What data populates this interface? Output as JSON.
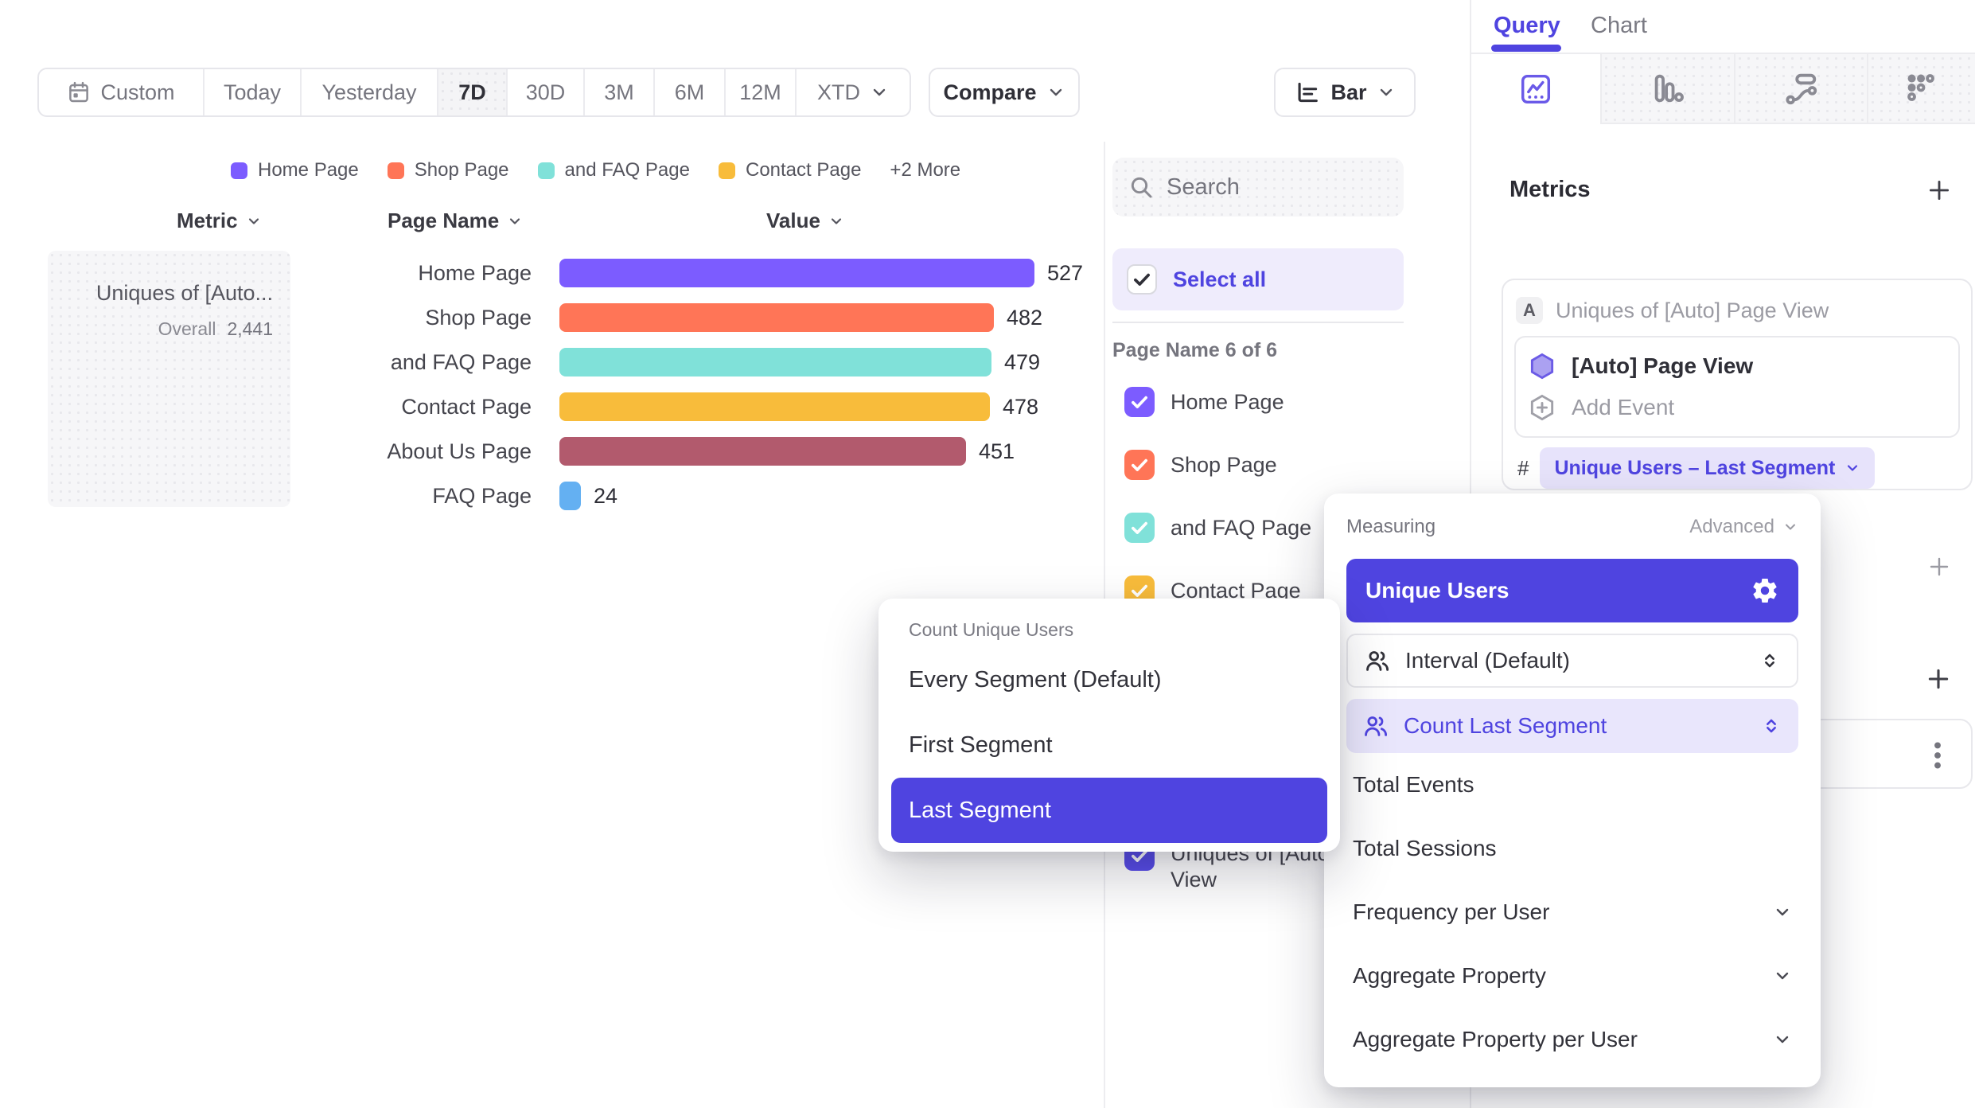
{
  "toolbar": {
    "custom_label": "Custom",
    "ranges": [
      "Today",
      "Yesterday",
      "7D",
      "30D",
      "3M",
      "6M",
      "12M"
    ],
    "selected_range": "7D",
    "xtd_label": "XTD",
    "compare_label": "Compare",
    "chart_type": "Bar"
  },
  "legend": {
    "items": [
      {
        "label": "Home Page",
        "color": "#7C5CFF"
      },
      {
        "label": "Shop Page",
        "color": "#FF7557"
      },
      {
        "label": "and FAQ Page",
        "color": "#80E1D9"
      },
      {
        "label": "Contact Page",
        "color": "#F8BC3B"
      }
    ],
    "more_label": "+2 More"
  },
  "chart_data": {
    "type": "bar",
    "orientation": "horizontal",
    "title": "Uniques of [Auto] Page View",
    "headers": {
      "metric": "Metric",
      "category": "Page Name",
      "value": "Value"
    },
    "metric_cell": {
      "title": "Uniques of [Auto...",
      "overall_label": "Overall",
      "overall_value": "2,441"
    },
    "categories": [
      "Home Page",
      "Shop Page",
      "and FAQ Page",
      "Contact Page",
      "About Us Page",
      "FAQ Page"
    ],
    "values": [
      527,
      482,
      479,
      478,
      451,
      24
    ],
    "colors": [
      "#7C5CFF",
      "#FF7557",
      "#80E1D9",
      "#F8BC3B",
      "#B25A6D",
      "#64B0F2"
    ],
    "xlim": [
      0,
      527
    ],
    "grid": false,
    "legend_position": "top"
  },
  "filter_panel": {
    "search_placeholder": "Search",
    "select_all_label": "Select all",
    "group_label": "Page Name 6 of 6",
    "items": [
      {
        "label": "Home Page",
        "color": "#7C5CFF",
        "checked": true
      },
      {
        "label": "Shop Page",
        "color": "#FF7557",
        "checked": true
      },
      {
        "label": "and FAQ Page",
        "color": "#80E1D9",
        "checked": true
      },
      {
        "label": "Contact Page",
        "color": "#F8BC3B",
        "checked": true
      },
      {
        "label": "Uniques of [Auto] Page View",
        "color": "#584CE8",
        "checked": true
      }
    ]
  },
  "segment_dropdown": {
    "title": "Count Unique Users",
    "options": [
      "Every Segment (Default)",
      "First Segment",
      "Last Segment"
    ],
    "selected": "Last Segment"
  },
  "sidebar": {
    "tabs": [
      {
        "label": "Query",
        "active": true
      },
      {
        "label": "Chart",
        "active": false
      }
    ],
    "metrics_title": "Metrics",
    "metric_letter": "A",
    "metric_summary": "Uniques of [Auto] Page View",
    "event_name": "[Auto] Page View",
    "add_event_label": "Add Event",
    "hash_label": "#",
    "measure_pill_label": "Unique Users – Last Segment"
  },
  "measuring_dropdown": {
    "header": "Measuring",
    "advanced_label": "Advanced",
    "selected_measure": "Unique Users",
    "interval_label": "Interval (Default)",
    "count_segment_label": "Count Last Segment",
    "simple_options": [
      "Total Events",
      "Total Sessions"
    ],
    "expandable_options": [
      "Frequency per User",
      "Aggregate Property",
      "Aggregate Property per User"
    ]
  },
  "colors": {
    "accent": "#4F44E0",
    "accent_soft": "#E9E6FC",
    "text_dark": "#2F2F37",
    "text_gray": "#75757E"
  }
}
